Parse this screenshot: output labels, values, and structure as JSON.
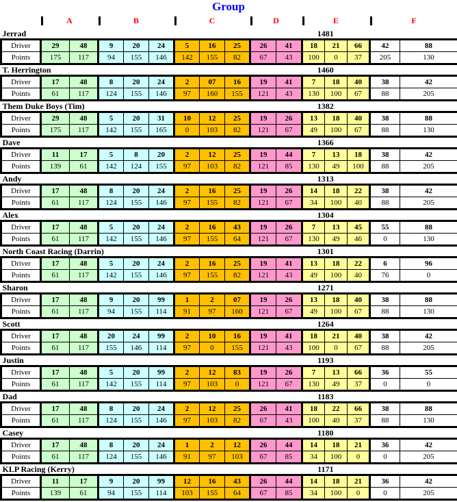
{
  "title": "Group",
  "colors": {
    "title": "#0000FF",
    "group_label": "#FF0000",
    "grid": "#000000"
  },
  "row_labels": {
    "driver": "Driver",
    "points": "Points"
  },
  "groups": [
    {
      "label": "A",
      "color": "#CCFFCC",
      "cols": 2
    },
    {
      "label": "B",
      "color": "#CCFFFF",
      "cols": 3
    },
    {
      "label": "C",
      "color": "#FFC000",
      "cols": 3
    },
    {
      "label": "D",
      "color": "#FF99CC",
      "cols": 2
    },
    {
      "label": "E",
      "color": "#FFFF99",
      "cols": 3
    },
    {
      "label": "F",
      "color": "#FFFFFF",
      "cols": 2
    }
  ],
  "players": [
    {
      "name": "Jerrad",
      "total": "1481",
      "drivers": [
        "29",
        "48",
        "9",
        "20",
        "24",
        "5",
        "16",
        "25",
        "26",
        "41",
        "18",
        "21",
        "66",
        "42",
        "88"
      ],
      "points": [
        "175",
        "117",
        "94",
        "155",
        "146",
        "142",
        "155",
        "82",
        "67",
        "43",
        "100",
        "0",
        "37",
        "205",
        "130"
      ]
    },
    {
      "name": "T. Herrington",
      "total": "1460",
      "drivers": [
        "17",
        "48",
        "8",
        "20",
        "24",
        "2",
        "07",
        "16",
        "19",
        "41",
        "7",
        "18",
        "40",
        "38",
        "42"
      ],
      "points": [
        "61",
        "117",
        "124",
        "155",
        "146",
        "97",
        "160",
        "155",
        "121",
        "43",
        "130",
        "100",
        "67",
        "88",
        "205"
      ]
    },
    {
      "name": "Them Duke Boys (Tim)",
      "total": "1382",
      "drivers": [
        "29",
        "48",
        "5",
        "20",
        "31",
        "10",
        "12",
        "25",
        "19",
        "26",
        "13",
        "18",
        "40",
        "38",
        "88"
      ],
      "points": [
        "175",
        "117",
        "142",
        "155",
        "165",
        "0",
        "103",
        "82",
        "121",
        "67",
        "49",
        "100",
        "67",
        "88",
        "130"
      ]
    },
    {
      "name": "Dave",
      "total": "1366",
      "drivers": [
        "11",
        "17",
        "5",
        "8",
        "20",
        "2",
        "12",
        "25",
        "19",
        "44",
        "7",
        "13",
        "18",
        "38",
        "42"
      ],
      "points": [
        "139",
        "61",
        "142",
        "124",
        "155",
        "97",
        "103",
        "82",
        "121",
        "85",
        "130",
        "49",
        "100",
        "88",
        "205"
      ]
    },
    {
      "name": "Andy",
      "total": "1313",
      "drivers": [
        "17",
        "48",
        "8",
        "20",
        "24",
        "2",
        "16",
        "25",
        "19",
        "26",
        "14",
        "18",
        "22",
        "38",
        "42"
      ],
      "points": [
        "61",
        "117",
        "124",
        "155",
        "146",
        "97",
        "155",
        "82",
        "121",
        "67",
        "34",
        "100",
        "40",
        "88",
        "205"
      ]
    },
    {
      "name": "Alex",
      "total": "1304",
      "drivers": [
        "17",
        "48",
        "5",
        "20",
        "24",
        "2",
        "16",
        "43",
        "19",
        "26",
        "7",
        "13",
        "45",
        "55",
        "88"
      ],
      "points": [
        "61",
        "117",
        "142",
        "155",
        "146",
        "97",
        "155",
        "64",
        "121",
        "67",
        "130",
        "49",
        "46",
        "0",
        "130"
      ]
    },
    {
      "name": "North Coast Racing (Darrin)",
      "total": "1301",
      "drivers": [
        "17",
        "48",
        "5",
        "20",
        "24",
        "2",
        "16",
        "25",
        "19",
        "41",
        "13",
        "18",
        "22",
        "6",
        "96"
      ],
      "points": [
        "61",
        "117",
        "142",
        "155",
        "146",
        "97",
        "155",
        "82",
        "121",
        "43",
        "49",
        "100",
        "40",
        "76",
        "0"
      ]
    },
    {
      "name": "Sharon",
      "total": "1271",
      "drivers": [
        "17",
        "48",
        "9",
        "20",
        "99",
        "1",
        "2",
        "07",
        "19",
        "26",
        "13",
        "18",
        "40",
        "38",
        "88"
      ],
      "points": [
        "61",
        "117",
        "94",
        "155",
        "114",
        "91",
        "97",
        "160",
        "121",
        "67",
        "49",
        "100",
        "67",
        "88",
        "130"
      ]
    },
    {
      "name": "Scott",
      "total": "1264",
      "drivers": [
        "17",
        "48",
        "20",
        "24",
        "99",
        "2",
        "10",
        "16",
        "19",
        "41",
        "18",
        "21",
        "40",
        "38",
        "42"
      ],
      "points": [
        "61",
        "117",
        "155",
        "146",
        "114",
        "97",
        "0",
        "155",
        "121",
        "43",
        "100",
        "0",
        "67",
        "88",
        "205"
      ]
    },
    {
      "name": "Justin",
      "total": "1193",
      "drivers": [
        "17",
        "48",
        "5",
        "20",
        "99",
        "2",
        "12",
        "83",
        "19",
        "26",
        "7",
        "13",
        "66",
        "36",
        "55"
      ],
      "points": [
        "61",
        "117",
        "142",
        "155",
        "114",
        "97",
        "103",
        "0",
        "121",
        "67",
        "130",
        "49",
        "37",
        "0",
        "0"
      ]
    },
    {
      "name": "Dad",
      "total": "1183",
      "drivers": [
        "17",
        "48",
        "8",
        "20",
        "24",
        "2",
        "12",
        "25",
        "26",
        "41",
        "18",
        "22",
        "66",
        "38",
        "88"
      ],
      "points": [
        "61",
        "117",
        "124",
        "155",
        "146",
        "97",
        "103",
        "82",
        "67",
        "43",
        "100",
        "40",
        "37",
        "88",
        "130"
      ]
    },
    {
      "name": "Casey",
      "total": "1180",
      "drivers": [
        "17",
        "48",
        "8",
        "20",
        "24",
        "1",
        "2",
        "12",
        "26",
        "44",
        "14",
        "18",
        "21",
        "36",
        "42"
      ],
      "points": [
        "61",
        "117",
        "124",
        "155",
        "146",
        "91",
        "97",
        "103",
        "67",
        "85",
        "34",
        "100",
        "0",
        "0",
        "205"
      ]
    },
    {
      "name": "KLP Racing (Kerry)",
      "total": "1171",
      "drivers": [
        "11",
        "17",
        "9",
        "20",
        "99",
        "12",
        "16",
        "43",
        "26",
        "44",
        "14",
        "18",
        "21",
        "36",
        "42"
      ],
      "points": [
        "139",
        "61",
        "94",
        "155",
        "114",
        "103",
        "155",
        "64",
        "67",
        "85",
        "34",
        "100",
        "0",
        "0",
        "205"
      ]
    }
  ]
}
